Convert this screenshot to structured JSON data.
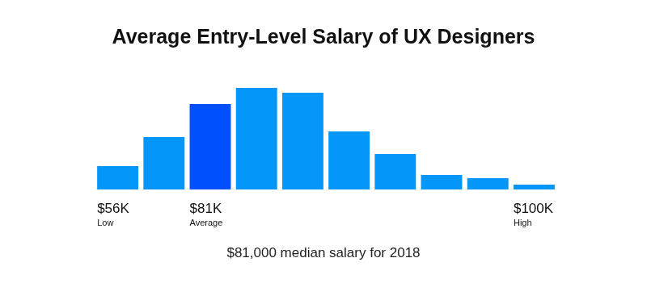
{
  "chart_data": {
    "type": "bar",
    "title": "Average Entry-Level Salary of UX Designers",
    "categories": [
      "$56K",
      null,
      "$81K",
      null,
      null,
      null,
      null,
      null,
      null,
      "$100K"
    ],
    "category_sublabels": [
      "Low",
      null,
      "Average",
      null,
      null,
      null,
      null,
      null,
      null,
      "High"
    ],
    "values": [
      29,
      65,
      106,
      126,
      120,
      72,
      44,
      18,
      14,
      6
    ],
    "colors": [
      "#0596fa",
      "#0596fa",
      "#0050ff",
      "#0596fa",
      "#0596fa",
      "#0596fa",
      "#0596fa",
      "#0596fa",
      "#0596fa",
      "#0596fa"
    ],
    "ylim": [
      0,
      126
    ],
    "grid": false,
    "tick_labels": "x",
    "footnote": "$81,000 median salary for 2018"
  }
}
